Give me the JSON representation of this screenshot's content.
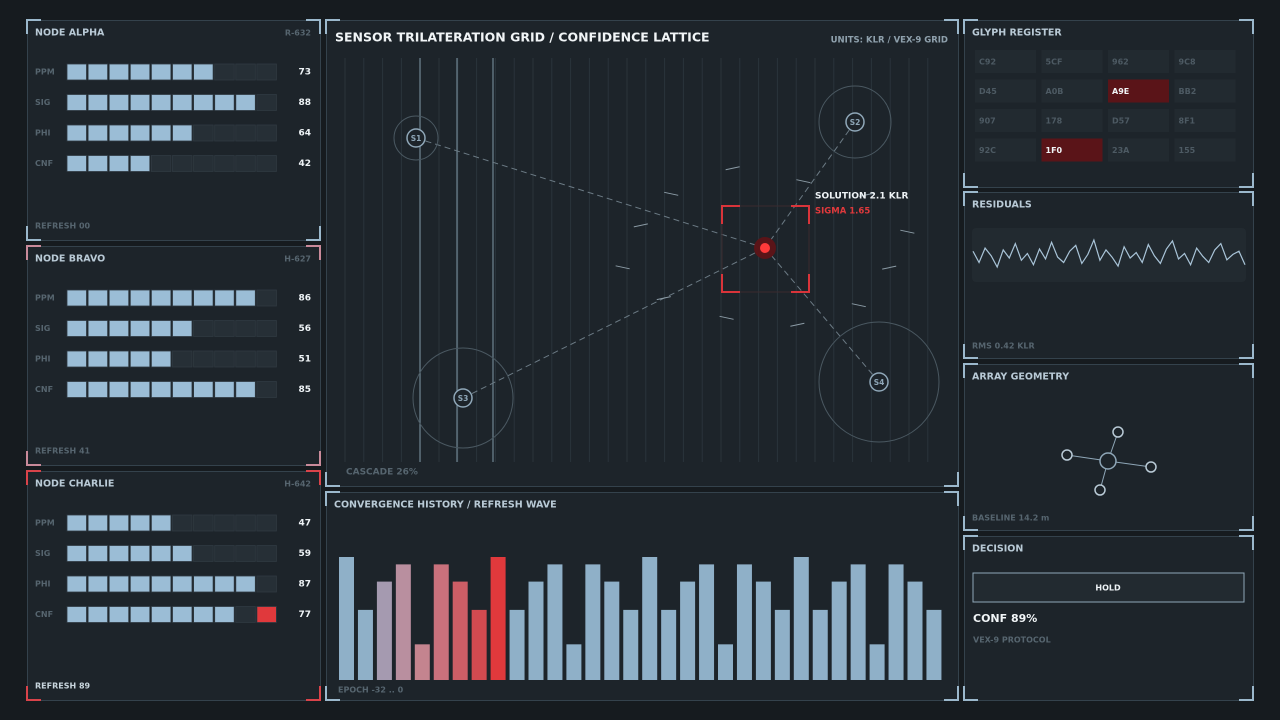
{
  "nodes": [
    {
      "title": "NODE ALPHA",
      "code": "R-632",
      "status": "REFRESH 00",
      "accent": "#9bb8cc",
      "metrics": [
        {
          "label": "PPM",
          "value": 73
        },
        {
          "label": "SIG",
          "value": 88
        },
        {
          "label": "PHI",
          "value": 64
        },
        {
          "label": "CNF",
          "value": 42
        }
      ]
    },
    {
      "title": "NODE BRAVO",
      "code": "H-627",
      "status": "REFRESH 41",
      "accent": "#c98a9a",
      "metrics": [
        {
          "label": "PPM",
          "value": 86
        },
        {
          "label": "SIG",
          "value": 56
        },
        {
          "label": "PHI",
          "value": 51
        },
        {
          "label": "CNF",
          "value": 85
        }
      ]
    },
    {
      "title": "NODE CHARLIE",
      "code": "H-642",
      "status": "REFRESH 89",
      "accent": "#d9434a",
      "metrics": [
        {
          "label": "PPM",
          "value": 47
        },
        {
          "label": "SIG",
          "value": 59
        },
        {
          "label": "PHI",
          "value": 87
        },
        {
          "label": "CNF",
          "value": 77,
          "alert": true
        }
      ]
    }
  ],
  "grid": {
    "title": "SENSOR TRILATERATION GRID / CONFIDENCE LATTICE",
    "units": "UNITS: KLR / VEX-9 GRID",
    "sensors": [
      "S1",
      "S2",
      "S3",
      "S4"
    ],
    "solution": "SOLUTION 2.1 KLR",
    "sigma": "SIGMA 1.65",
    "cascade": "CASCADE 26%"
  },
  "convergence": {
    "title": "CONVERGENCE HISTORY / REFRESH WAVE",
    "footer": "EPOCH -32 .. 0",
    "values": [
      100,
      57,
      80,
      94,
      29,
      94,
      80,
      57,
      100,
      57,
      80,
      94,
      29,
      94,
      80,
      57,
      100,
      57,
      80,
      94,
      29,
      94,
      80,
      57,
      100,
      57,
      80,
      94,
      29,
      94,
      80,
      57
    ],
    "colors": [
      "#8fb0c8",
      "#8fb0c8",
      "#a59ab0",
      "#b98f9f",
      "#c4848f",
      "#c9717c",
      "#cd5e66",
      "#d24a50",
      "#e0393c",
      "#8fb0c8",
      "#8fb0c8",
      "#8fb0c8",
      "#8fb0c8",
      "#8fb0c8",
      "#8fb0c8",
      "#8fb0c8",
      "#8fb0c8",
      "#8fb0c8",
      "#8fb0c8",
      "#8fb0c8",
      "#8fb0c8",
      "#8fb0c8",
      "#8fb0c8",
      "#8fb0c8",
      "#8fb0c8",
      "#8fb0c8",
      "#8fb0c8",
      "#8fb0c8",
      "#8fb0c8",
      "#8fb0c8",
      "#8fb0c8",
      "#8fb0c8"
    ]
  },
  "glyphs": {
    "title": "GLYPH REGISTER",
    "cells": [
      {
        "label": "C92"
      },
      {
        "label": "5CF"
      },
      {
        "label": "962"
      },
      {
        "label": "9C8"
      },
      {
        "label": "D45"
      },
      {
        "label": "A0B"
      },
      {
        "label": "A9E",
        "active": true
      },
      {
        "label": "BB2"
      },
      {
        "label": "907"
      },
      {
        "label": "178"
      },
      {
        "label": "D57"
      },
      {
        "label": "8F1"
      },
      {
        "label": "92C"
      },
      {
        "label": "1F0",
        "active": true
      },
      {
        "label": "23A"
      },
      {
        "label": "155"
      }
    ]
  },
  "residuals": {
    "title": "RESIDUALS",
    "footer": "RMS 0.42 KLR",
    "values": [
      55,
      30,
      62,
      45,
      20,
      58,
      40,
      72,
      35,
      50,
      25,
      60,
      38,
      75,
      42,
      30,
      55,
      68,
      28,
      48,
      80,
      35,
      58,
      42,
      22,
      65,
      40,
      52,
      30,
      70,
      45,
      28,
      60,
      78,
      38,
      50,
      25,
      62,
      44,
      30,
      58,
      72,
      36,
      48,
      55,
      25
    ]
  },
  "geometry": {
    "title": "ARRAY GEOMETRY",
    "footer": "BASELINE 14.2 m"
  },
  "decision": {
    "title": "DECISION",
    "action": "HOLD",
    "confidence": "CONF 89%",
    "protocol": "VEX-9 PROTOCOL"
  }
}
